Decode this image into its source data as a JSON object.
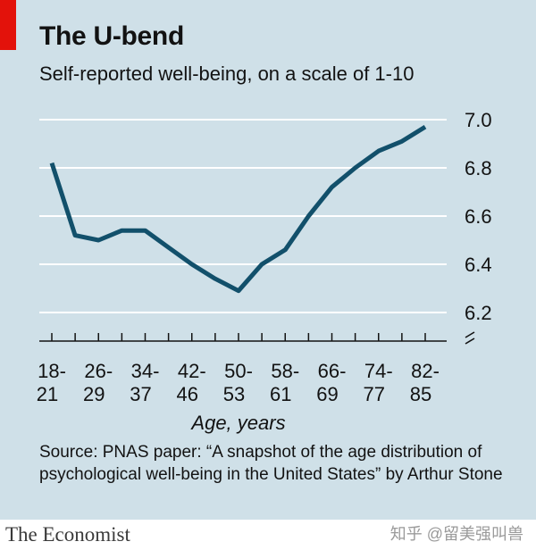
{
  "title": "The U-bend",
  "subtitle": "Self-reported well-being, on a scale of 1-10",
  "source": "Source: PNAS paper: “A snapshot of the age distribution of psychological well-being in the United States” by Arthur Stone",
  "brand": "The Economist",
  "watermark": "知乎 @留美强叫兽",
  "colors": {
    "line": "#12506b",
    "panel": "#cfe0e8",
    "accent": "#e3120b",
    "grid": "#ffffff"
  },
  "chart_data": {
    "type": "line",
    "xlabel": "Age, years",
    "ylabel": "",
    "ylim": [
      6.2,
      7.0
    ],
    "yticks": [
      "7.0",
      "6.8",
      "6.6",
      "6.4",
      "6.2"
    ],
    "x_tick_labels": [
      {
        "top": "18-",
        "bottom": "21"
      },
      {
        "top": "26-",
        "bottom": "29"
      },
      {
        "top": "34-",
        "bottom": "37"
      },
      {
        "top": "42-",
        "bottom": "46"
      },
      {
        "top": "50-",
        "bottom": "53"
      },
      {
        "top": "58-",
        "bottom": "61"
      },
      {
        "top": "66-",
        "bottom": "69"
      },
      {
        "top": "74-",
        "bottom": "77"
      },
      {
        "top": "82-",
        "bottom": "85"
      }
    ],
    "grid": true,
    "y_axis_break": true,
    "series": [
      {
        "values": [
          6.82,
          6.52,
          6.5,
          6.54,
          6.54,
          6.47,
          6.4,
          6.34,
          6.29,
          6.4,
          6.46,
          6.6,
          6.72,
          6.8,
          6.87,
          6.91,
          6.97
        ]
      }
    ]
  }
}
